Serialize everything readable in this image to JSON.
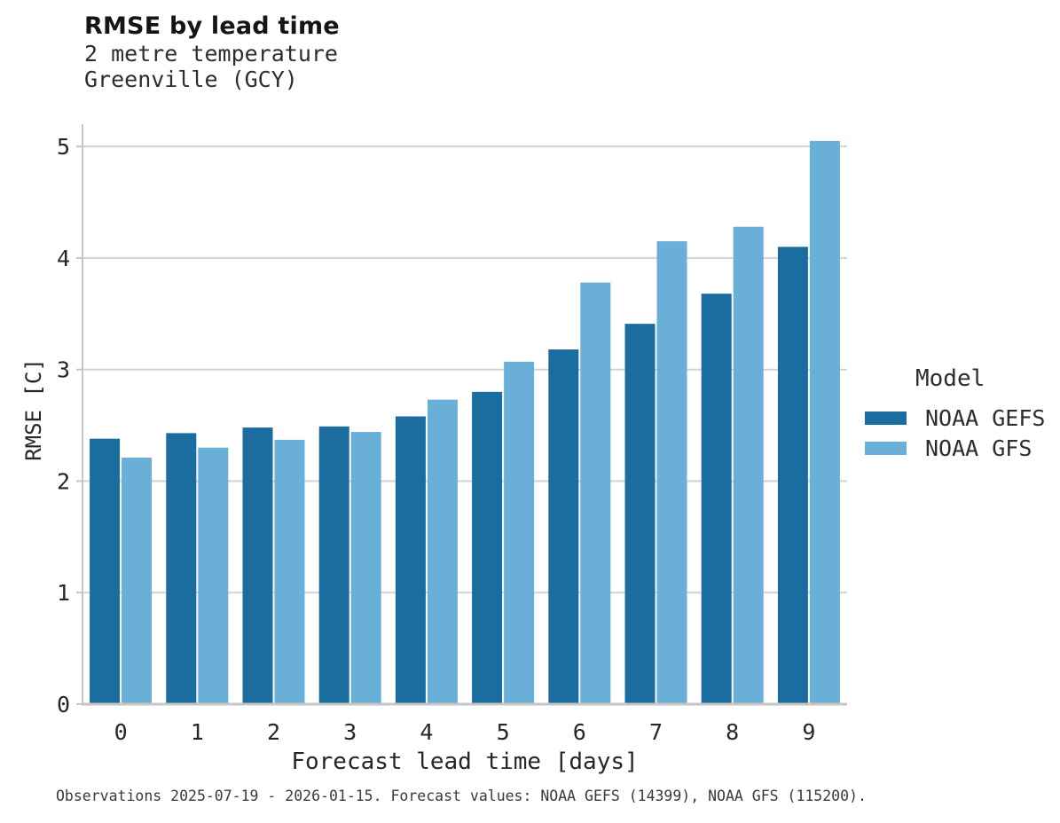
{
  "header": {
    "title": "RMSE by lead time",
    "subtitle_line1": "2 metre temperature",
    "subtitle_line2": "Greenville (GCY)"
  },
  "legend": {
    "title": "Model",
    "items": [
      {
        "label": "NOAA GEFS",
        "color": "#1a6d9e"
      },
      {
        "label": "NOAA GFS",
        "color": "#69afd8"
      }
    ]
  },
  "footer": {
    "note": "Observations 2025-07-19 - 2026-01-15. Forecast values: NOAA GEFS (14399), NOAA GFS (115200)."
  },
  "colors": {
    "gridline": "#d2d2d2",
    "axis_line": "#c6c6c6",
    "tick_label": "#262626"
  },
  "chart_data": {
    "type": "bar",
    "title": "RMSE by lead time",
    "subtitle": [
      "2 metre temperature",
      "Greenville (GCY)"
    ],
    "xlabel": "Forecast lead time [days]",
    "ylabel": "RMSE [C]",
    "categories": [
      "0",
      "1",
      "2",
      "3",
      "4",
      "5",
      "6",
      "7",
      "8",
      "9"
    ],
    "series": [
      {
        "name": "NOAA GEFS",
        "color": "#1a6d9e",
        "values": [
          2.38,
          2.43,
          2.48,
          2.49,
          2.58,
          2.8,
          3.18,
          3.41,
          3.68,
          4.1
        ]
      },
      {
        "name": "NOAA GFS",
        "color": "#69afd8",
        "values": [
          2.21,
          2.3,
          2.37,
          2.44,
          2.73,
          3.07,
          3.78,
          4.15,
          4.28,
          5.05
        ]
      }
    ],
    "ylim": [
      0,
      5.2
    ],
    "yticks": [
      0,
      1,
      2,
      3,
      4,
      5
    ],
    "grid": "horizontal",
    "legend_position": "right",
    "legend_title": "Model"
  }
}
